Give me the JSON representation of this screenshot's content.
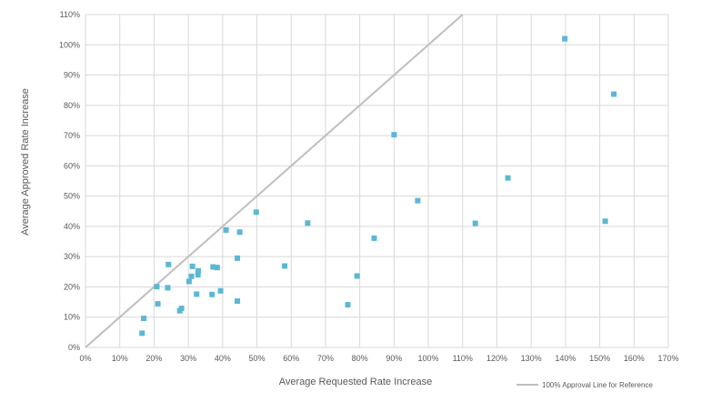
{
  "chart_data": {
    "type": "scatter",
    "xlabel": "Average Requested Rate Increase",
    "ylabel": "Average Approved Rate Increase",
    "xlim": [
      0,
      170
    ],
    "ylim": [
      0,
      110
    ],
    "x_ticks": [
      0,
      10,
      20,
      30,
      40,
      50,
      60,
      70,
      80,
      90,
      100,
      110,
      120,
      130,
      140,
      150,
      160,
      170
    ],
    "y_ticks": [
      0,
      10,
      20,
      30,
      40,
      50,
      60,
      70,
      80,
      90,
      100,
      110
    ],
    "x_tick_labels": [
      "0%",
      "10%",
      "20%",
      "30%",
      "40%",
      "50%",
      "60%",
      "70%",
      "80%",
      "90%",
      "100%",
      "110%",
      "120%",
      "130%",
      "140%",
      "150%",
      "160%",
      "170%"
    ],
    "y_tick_labels": [
      "0%",
      "10%",
      "20%",
      "30%",
      "40%",
      "50%",
      "60%",
      "70%",
      "80%",
      "90%",
      "100%",
      "110%"
    ],
    "grid": true,
    "legend_position": "bottom-right",
    "point_color": "#5bb8d4",
    "line_color": "#bfbfbf",
    "grid_color": "#d9d9d9",
    "reference_line": {
      "name": "100% Approval Line for Reference",
      "x": [
        0,
        110
      ],
      "y": [
        0,
        110
      ]
    },
    "points": [
      {
        "x": 16.5,
        "y": 4.7
      },
      {
        "x": 17.0,
        "y": 9.6
      },
      {
        "x": 20.8,
        "y": 20.1
      },
      {
        "x": 21.1,
        "y": 14.4
      },
      {
        "x": 24.0,
        "y": 19.7
      },
      {
        "x": 24.2,
        "y": 27.4
      },
      {
        "x": 27.5,
        "y": 12.1
      },
      {
        "x": 28.0,
        "y": 12.9
      },
      {
        "x": 30.2,
        "y": 21.8
      },
      {
        "x": 30.9,
        "y": 23.5
      },
      {
        "x": 31.2,
        "y": 26.8
      },
      {
        "x": 32.4,
        "y": 17.6
      },
      {
        "x": 32.8,
        "y": 24.0
      },
      {
        "x": 32.9,
        "y": 25.3
      },
      {
        "x": 36.9,
        "y": 17.5
      },
      {
        "x": 37.2,
        "y": 26.6
      },
      {
        "x": 38.4,
        "y": 26.4
      },
      {
        "x": 39.4,
        "y": 18.7
      },
      {
        "x": 41.0,
        "y": 38.8
      },
      {
        "x": 44.3,
        "y": 15.3
      },
      {
        "x": 44.3,
        "y": 29.5
      },
      {
        "x": 45.0,
        "y": 38.1
      },
      {
        "x": 49.8,
        "y": 44.7
      },
      {
        "x": 58.1,
        "y": 26.9
      },
      {
        "x": 64.8,
        "y": 41.1
      },
      {
        "x": 76.5,
        "y": 14.1
      },
      {
        "x": 79.2,
        "y": 23.6
      },
      {
        "x": 84.2,
        "y": 36.1
      },
      {
        "x": 90.0,
        "y": 70.3
      },
      {
        "x": 96.9,
        "y": 48.5
      },
      {
        "x": 113.7,
        "y": 41.0
      },
      {
        "x": 123.2,
        "y": 56.0
      },
      {
        "x": 139.8,
        "y": 102.0
      },
      {
        "x": 151.6,
        "y": 41.7
      },
      {
        "x": 154.1,
        "y": 83.7
      }
    ]
  }
}
